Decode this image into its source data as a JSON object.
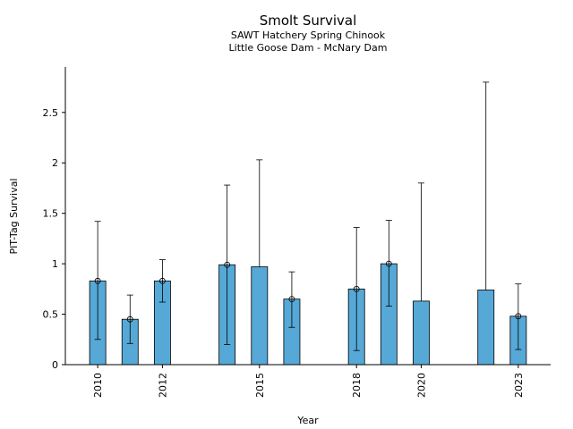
{
  "chart_data": {
    "type": "bar",
    "title": "Smolt Survival",
    "subtitle_lines": [
      "SAWT Hatchery Spring Chinook",
      "Little Goose Dam - McNary Dam"
    ],
    "xlabel": "Year",
    "ylabel": "PIT-Tag Survival",
    "xlim": [
      2009,
      2024
    ],
    "ylim": [
      0,
      2.95
    ],
    "x_ticks": [
      2010,
      2012,
      2015,
      2018,
      2020,
      2023
    ],
    "y_ticks": [
      0,
      0.5,
      1,
      1.5,
      2,
      2.5
    ],
    "y_tick_labels": [
      "0",
      "0.5",
      "1",
      "1.5",
      "2",
      "2.5"
    ],
    "grid": false,
    "bar_color": "#56A8D6",
    "points": [
      {
        "year": 2010,
        "value": 0.83,
        "lower": 0.25,
        "upper": 1.42,
        "marker": true
      },
      {
        "year": 2011,
        "value": 0.45,
        "lower": 0.21,
        "upper": 0.69,
        "marker": true
      },
      {
        "year": 2012,
        "value": 0.83,
        "lower": 0.62,
        "upper": 1.04,
        "marker": true
      },
      {
        "year": 2014,
        "value": 0.99,
        "lower": 0.2,
        "upper": 1.78,
        "marker": true
      },
      {
        "year": 2015,
        "value": 0.97,
        "lower": null,
        "upper": 2.03,
        "marker": false
      },
      {
        "year": 2016,
        "value": 0.65,
        "lower": 0.37,
        "upper": 0.92,
        "marker": true
      },
      {
        "year": 2018,
        "value": 0.75,
        "lower": 0.14,
        "upper": 1.36,
        "marker": true
      },
      {
        "year": 2019,
        "value": 1.0,
        "lower": 0.58,
        "upper": 1.43,
        "marker": true
      },
      {
        "year": 2020,
        "value": 0.63,
        "lower": null,
        "upper": 1.8,
        "marker": false
      },
      {
        "year": 2022,
        "value": 0.74,
        "lower": null,
        "upper": 2.8,
        "marker": false
      },
      {
        "year": 2023,
        "value": 0.48,
        "lower": 0.15,
        "upper": 0.8,
        "marker": true
      }
    ]
  }
}
